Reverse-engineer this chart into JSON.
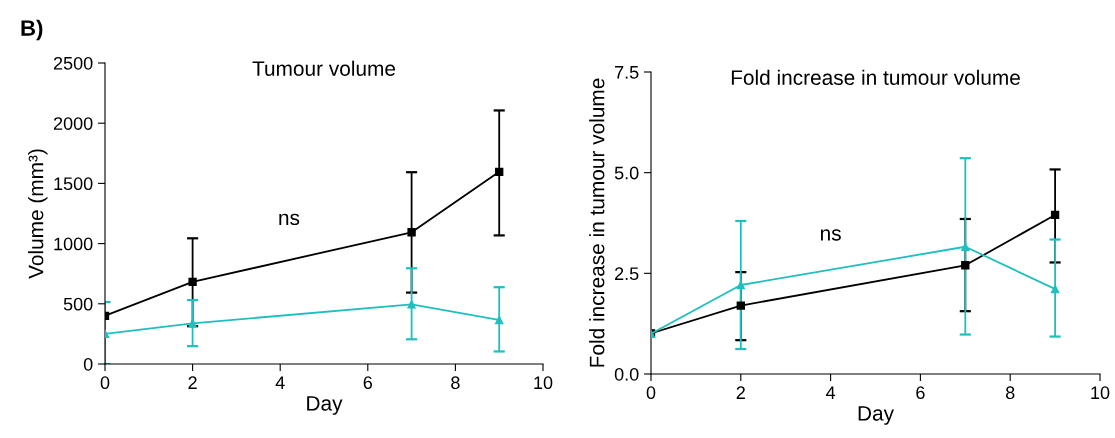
{
  "chart_data": [
    {
      "type": "line",
      "title": "Tumour volume",
      "xlabel": "Day",
      "ylabel": "Volume (mm³)",
      "annotations": [
        "B)",
        "ns"
      ],
      "x": [
        0,
        2,
        7,
        9
      ],
      "xlim": [
        0,
        10
      ],
      "xticks": [
        0,
        2,
        4,
        6,
        8,
        10
      ],
      "ylim": [
        0,
        2500
      ],
      "yticks": [
        0,
        500,
        1000,
        1500,
        2000,
        2500
      ],
      "grid": false,
      "legend": false,
      "series": [
        {
          "color": "#000000",
          "marker": "square",
          "values": [
            400,
            682,
            1094,
            1596
          ],
          "errors": [
            null,
            [
              314,
              1044
            ],
            [
              593,
              1593
            ],
            [
              1068,
              2106
            ]
          ]
        },
        {
          "color": "#1fbfbf",
          "marker": "triangle",
          "values": [
            250,
            338,
            495,
            365
          ],
          "errors": [
            [
              0,
              515
            ],
            [
              148,
              531
            ],
            [
              205,
              795
            ],
            [
              104,
              638
            ]
          ]
        }
      ]
    },
    {
      "type": "line",
      "title": "Fold increase in tumour volume",
      "xlabel": "Day",
      "ylabel": "Fold increase in tumour volume",
      "annotations": [
        "ns"
      ],
      "x": [
        0,
        2,
        7,
        9
      ],
      "xlim": [
        0,
        10
      ],
      "xticks": [
        0,
        2,
        4,
        6,
        8,
        10
      ],
      "ylim": [
        0,
        7.5
      ],
      "yticks": [
        {
          "value": 0,
          "label": "0.0"
        },
        2.5,
        {
          "value": 5,
          "label": "5.0"
        },
        7.5
      ],
      "grid": false,
      "legend": false,
      "series": [
        {
          "color": "#000000",
          "marker": "square",
          "values": [
            1.01,
            1.7,
            2.7,
            3.95
          ],
          "errors": [
            null,
            [
              0.84,
              2.53
            ],
            [
              1.56,
              3.85
            ],
            [
              2.77,
              5.08
            ]
          ]
        },
        {
          "color": "#1fbfbf",
          "marker": "triangle",
          "values": [
            1.0,
            2.21,
            3.16,
            2.11
          ],
          "errors": [
            null,
            [
              0.62,
              3.8
            ],
            [
              0.98,
              5.36
            ],
            [
              0.93,
              3.34
            ]
          ]
        }
      ]
    }
  ]
}
